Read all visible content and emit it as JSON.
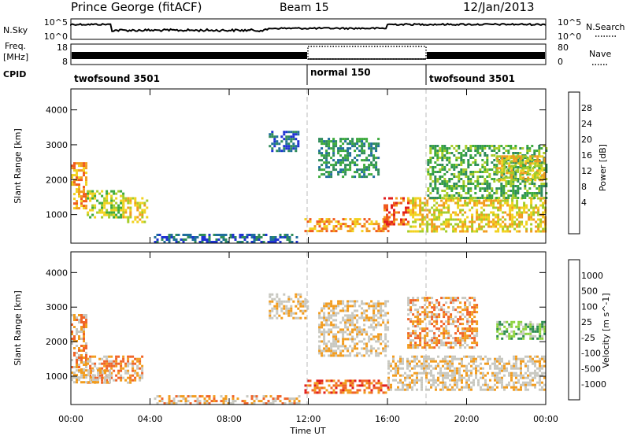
{
  "header": {
    "station": "Prince George (fitACF)",
    "beam": "Beam 15",
    "date": "12/Jan/2013"
  },
  "panels": {
    "nsky": {
      "label": "N.Sky",
      "left_ticks": [
        "10^5",
        "10^0"
      ],
      "right_ticks": [
        "10^5",
        "10^0"
      ],
      "right_label": "N.Search"
    },
    "freq": {
      "label_line1": "Freq.",
      "label_line2": "[MHz]",
      "left_ticks": [
        "18",
        "8"
      ],
      "right_ticks": [
        "80",
        "0"
      ],
      "right_label": "Nave"
    },
    "cpid": {
      "label": "CPID",
      "segments": [
        {
          "name": "twofsound 3501",
          "start_hour": 0,
          "end_hour": 12
        },
        {
          "name": "normal 150",
          "start_hour": 12,
          "end_hour": 18
        },
        {
          "name": "twofsound 3501",
          "start_hour": 18,
          "end_hour": 24
        }
      ]
    }
  },
  "colors": {
    "power_scale": [
      "#1f32d2",
      "#1f6e9c",
      "#2f8c5a",
      "#3caa3c",
      "#a6cc28",
      "#f2d21e",
      "#f29c1e",
      "#f05a1e",
      "#e11e1e"
    ],
    "velocity_scale": [
      "#e11e1e",
      "#f06428",
      "#f29c1e",
      "#c8c8c0",
      "#c8c8c0",
      "#8cd23c",
      "#2e8c50",
      "#2850a0",
      "#1e32d2"
    ]
  },
  "chart_data": [
    {
      "type": "heatmap",
      "title": "Power",
      "xlabel": "",
      "ylabel": "Slant Range [km]",
      "colorbar_label": "Power [dB]",
      "colorbar_ticks": [
        "28",
        "24",
        "20",
        "16",
        "12",
        "8",
        "4"
      ],
      "ylim": [
        180,
        4600
      ],
      "xlim": [
        0,
        24
      ],
      "y_ticks": [
        1000,
        2000,
        3000,
        4000
      ],
      "echo_regions": [
        {
          "x0": 0,
          "x1": 0.8,
          "y0": 1200,
          "y1": 2500,
          "level": 6
        },
        {
          "x0": 0.8,
          "x1": 2.6,
          "y0": 900,
          "y1": 1700,
          "level": 4
        },
        {
          "x0": 2.6,
          "x1": 3.8,
          "y0": 800,
          "y1": 1500,
          "level": 5
        },
        {
          "x0": 4.2,
          "x1": 11.5,
          "y0": 200,
          "y1": 450,
          "level": 1
        },
        {
          "x0": 10.0,
          "x1": 11.5,
          "y0": 2800,
          "y1": 3400,
          "level": 1
        },
        {
          "x0": 11.8,
          "x1": 16.0,
          "y0": 500,
          "y1": 900,
          "level": 6
        },
        {
          "x0": 12.5,
          "x1": 15.5,
          "y0": 2100,
          "y1": 3200,
          "level": 2
        },
        {
          "x0": 15.8,
          "x1": 17.0,
          "y0": 700,
          "y1": 1500,
          "level": 7
        },
        {
          "x0": 17.0,
          "x1": 24.0,
          "y0": 500,
          "y1": 1500,
          "level": 5
        },
        {
          "x0": 18.0,
          "x1": 24.0,
          "y0": 1500,
          "y1": 3000,
          "level": 3
        },
        {
          "x0": 21.5,
          "x1": 24.0,
          "y0": 2000,
          "y1": 2700,
          "level": 5
        }
      ]
    },
    {
      "type": "heatmap",
      "title": "Velocity",
      "xlabel": "Time UT",
      "ylabel": "Slant Range [km]",
      "colorbar_label": "Velocity [m s^-1]",
      "colorbar_ticks": [
        "1000",
        "500",
        "100",
        "25",
        "-25",
        "-100",
        "-500",
        "-1000"
      ],
      "ylim": [
        180,
        4600
      ],
      "xlim": [
        0,
        24
      ],
      "y_ticks": [
        1000,
        2000,
        3000,
        4000
      ],
      "x_ticks": [
        "00:00",
        "04:00",
        "08:00",
        "12:00",
        "16:00",
        "20:00",
        "00:00"
      ],
      "echo_regions": [
        {
          "x0": 0,
          "x1": 0.8,
          "y0": 1100,
          "y1": 2800,
          "level": 2
        },
        {
          "x0": 0.8,
          "x1": 3.6,
          "y0": 800,
          "y1": 1600,
          "level": 2
        },
        {
          "x0": 0,
          "x1": 2.0,
          "y0": 800,
          "y1": 1200,
          "level": 3
        },
        {
          "x0": 4.2,
          "x1": 11.5,
          "y0": 200,
          "y1": 450,
          "level": 2
        },
        {
          "x0": 10.0,
          "x1": 12.0,
          "y0": 2700,
          "y1": 3400,
          "level": 3
        },
        {
          "x0": 11.8,
          "x1": 16.0,
          "y0": 500,
          "y1": 900,
          "level": 1
        },
        {
          "x0": 12.5,
          "x1": 16.0,
          "y0": 1600,
          "y1": 3200,
          "level": 3
        },
        {
          "x0": 16.0,
          "x1": 24.0,
          "y0": 600,
          "y1": 1600,
          "level": 3
        },
        {
          "x0": 17.0,
          "x1": 20.5,
          "y0": 1800,
          "y1": 3300,
          "level": 2
        },
        {
          "x0": 21.5,
          "x1": 24.0,
          "y0": 2100,
          "y1": 2600,
          "level": 5
        }
      ]
    }
  ]
}
